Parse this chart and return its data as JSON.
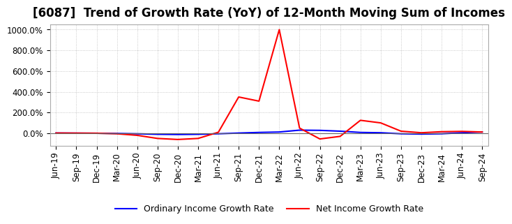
{
  "title": "[6087]  Trend of Growth Rate (YoY) of 12-Month Moving Sum of Incomes",
  "legend": [
    "Ordinary Income Growth Rate",
    "Net Income Growth Rate"
  ],
  "line_colors": [
    "#0000ff",
    "#ff0000"
  ],
  "ylim": [
    -120,
    1050
  ],
  "yticks": [
    0,
    200,
    400,
    600,
    800,
    1000
  ],
  "ytick_labels": [
    "0.0%",
    "200.0%",
    "400.0%",
    "600.0%",
    "800.0%",
    "1000.0%"
  ],
  "x_labels": [
    "Jun-19",
    "Sep-19",
    "Dec-19",
    "Mar-20",
    "Jun-20",
    "Sep-20",
    "Dec-20",
    "Mar-21",
    "Jun-21",
    "Sep-21",
    "Dec-21",
    "Mar-22",
    "Jun-22",
    "Sep-22",
    "Dec-22",
    "Mar-23",
    "Jun-23",
    "Sep-23",
    "Dec-23",
    "Mar-24",
    "Jun-24",
    "Sep-24"
  ],
  "ordinary_income_gr": [
    2,
    1,
    0,
    -2,
    -5,
    -10,
    -12,
    -10,
    -5,
    2,
    8,
    12,
    30,
    28,
    20,
    8,
    5,
    -5,
    -8,
    -5,
    5,
    12
  ],
  "net_income_gr": [
    2,
    1,
    0,
    -5,
    -20,
    -50,
    -60,
    -50,
    10,
    350,
    310,
    1000,
    50,
    -55,
    -30,
    125,
    100,
    20,
    5,
    15,
    18,
    12
  ],
  "background_color": "#ffffff",
  "grid_color": "#bbbbbb",
  "title_fontsize": 12,
  "tick_fontsize": 8.5
}
